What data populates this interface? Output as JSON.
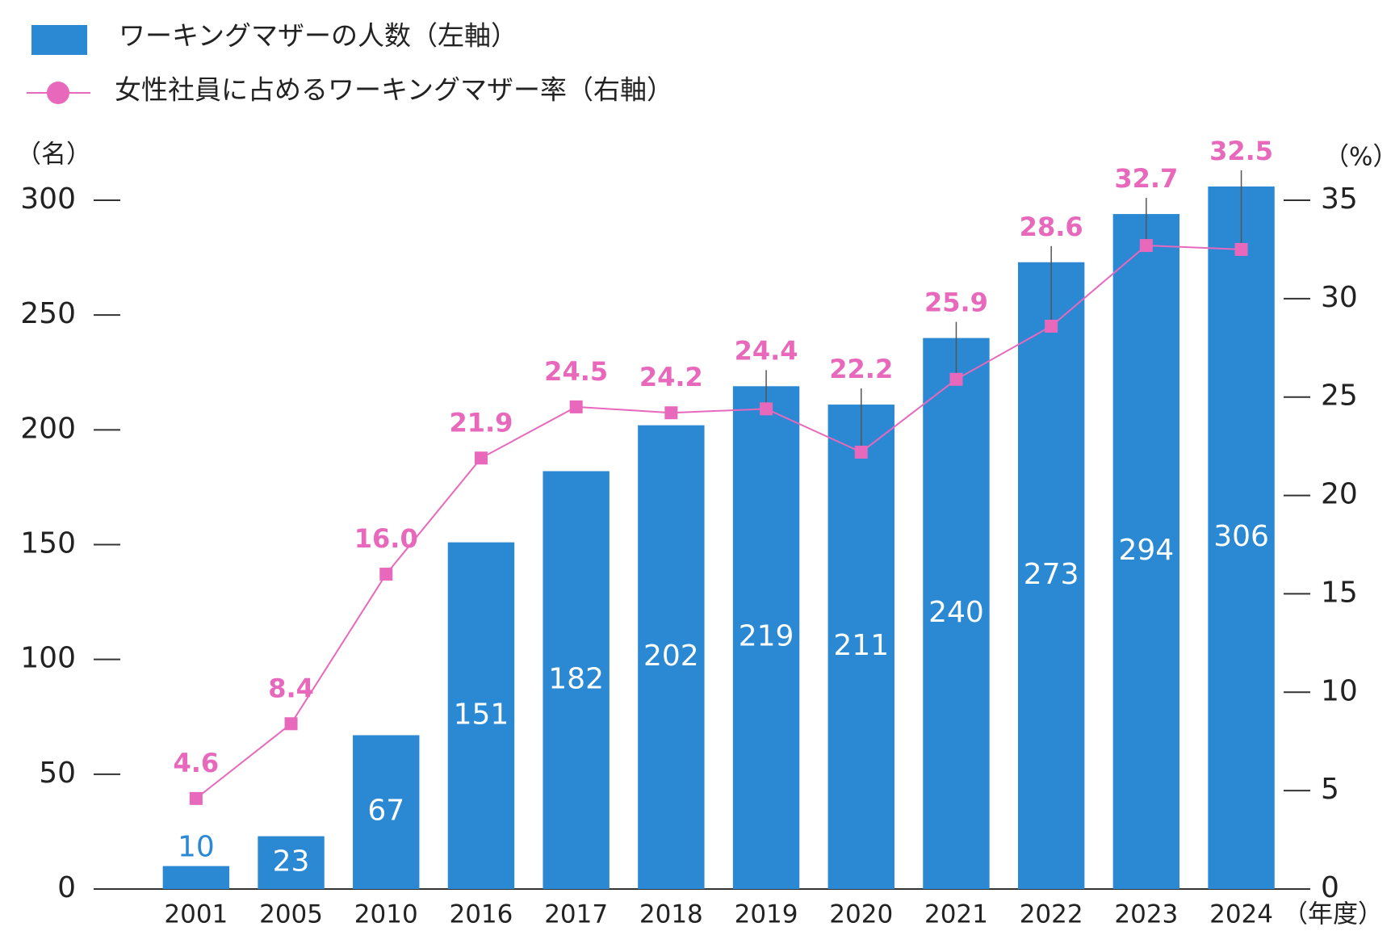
{
  "chart_data": {
    "type": "bar",
    "categories": [
      "2001",
      "2005",
      "2010",
      "2016",
      "2017",
      "2018",
      "2019",
      "2020",
      "2021",
      "2022",
      "2023",
      "2024"
    ],
    "x_unit": "（年度）",
    "y_unit": "（名）",
    "y2_unit": "（%）",
    "series": [
      {
        "name": "ワーキングマザーの人数（左軸）",
        "type": "bar",
        "color": "#2b89d4",
        "values": [
          10,
          23,
          67,
          151,
          182,
          202,
          219,
          211,
          240,
          273,
          294,
          306
        ]
      },
      {
        "name": "女性社員に占めるワーキングマザー率（右軸）",
        "type": "line",
        "axis": "y2",
        "color": "#e868bb",
        "values": [
          4.6,
          8.4,
          16.0,
          21.9,
          24.5,
          24.2,
          24.4,
          22.2,
          25.9,
          28.6,
          32.7,
          32.5
        ],
        "value_labels": [
          "4.6",
          "8.4",
          "16.0",
          "21.9",
          "24.5",
          "24.2",
          "24.4",
          "22.2",
          "25.9",
          "28.6",
          "32.7",
          "32.5"
        ]
      }
    ],
    "ylim": [
      0,
      300
    ],
    "yticks": [
      0,
      50,
      100,
      150,
      200,
      250,
      300
    ],
    "y2lim": [
      0,
      35
    ],
    "y2ticks": [
      0,
      5,
      10,
      15,
      20,
      25,
      30,
      35
    ]
  }
}
